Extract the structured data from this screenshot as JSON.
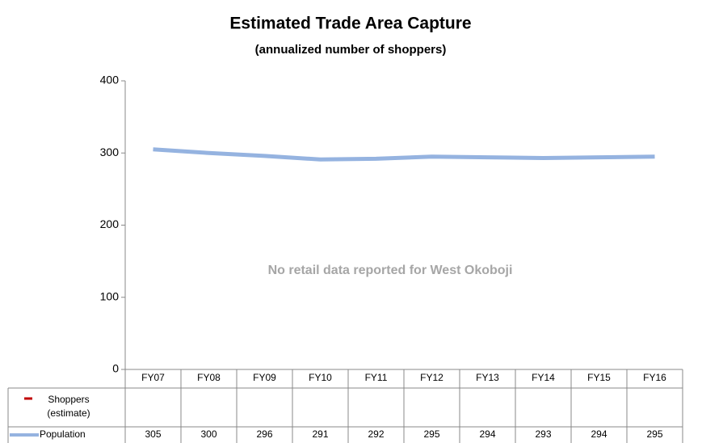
{
  "chart_data": {
    "type": "line",
    "title": "Estimated Trade Area Capture",
    "subtitle": "(annualized number of shoppers)",
    "annotation": "No retail data reported for West Okoboji",
    "categories": [
      "FY07",
      "FY08",
      "FY09",
      "FY10",
      "FY11",
      "FY12",
      "FY13",
      "FY14",
      "FY15",
      "FY16"
    ],
    "series": [
      {
        "name": "Shoppers (estimate)",
        "color": "#c00000",
        "values": [
          null,
          null,
          null,
          null,
          null,
          null,
          null,
          null,
          null,
          null
        ]
      },
      {
        "name": "Population",
        "color": "#95b3e0",
        "values": [
          305,
          300,
          296,
          291,
          292,
          295,
          294,
          293,
          294,
          295
        ]
      }
    ],
    "ylim": [
      0,
      400
    ],
    "yticks": [
      0,
      100,
      200,
      300,
      400
    ],
    "grid": false
  }
}
